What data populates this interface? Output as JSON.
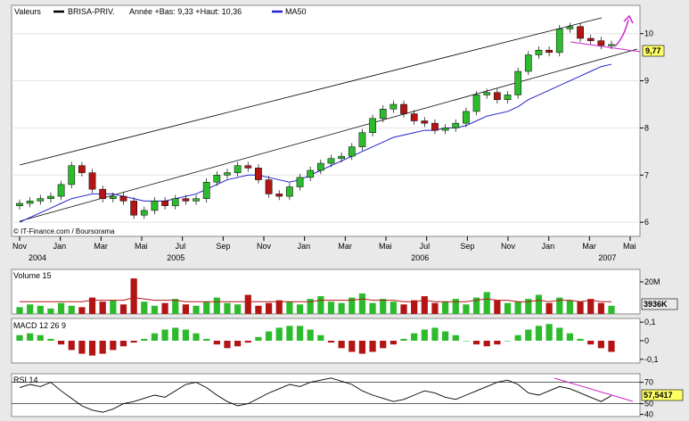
{
  "colors": {
    "up": "#2dbb2d",
    "down": "#b31515",
    "ma": "#2222cc",
    "trend": "#000000",
    "annotation": "#cc22cc",
    "lastbox": "#ffff66"
  },
  "legend": {
    "label": "Valeurs",
    "ticker": "BRISA-PRIV.",
    "range_text": "Année +Bas: 9,33 +Haut: 10,36",
    "ma_label": "MA50"
  },
  "watermark": "© IT-Finance.com / Boursorama",
  "x_axis": {
    "months": [
      {
        "label": "Nov",
        "t": 0
      },
      {
        "label": "Jan",
        "t": 2
      },
      {
        "label": "Mar",
        "t": 4
      },
      {
        "label": "Mai",
        "t": 6
      },
      {
        "label": "Jul",
        "t": 8
      },
      {
        "label": "Sep",
        "t": 10
      },
      {
        "label": "Nov",
        "t": 12
      },
      {
        "label": "Jan",
        "t": 14
      },
      {
        "label": "Mar",
        "t": 16
      },
      {
        "label": "Mai",
        "t": 18
      },
      {
        "label": "Jul",
        "t": 20
      },
      {
        "label": "Sep",
        "t": 22
      },
      {
        "label": "Nov",
        "t": 24
      },
      {
        "label": "Jan",
        "t": 26
      },
      {
        "label": "Mar",
        "t": 28
      },
      {
        "label": "Mai",
        "t": 30
      }
    ],
    "years": [
      {
        "label": "2004",
        "t": 0
      },
      {
        "label": "2005",
        "t": 6.8
      },
      {
        "label": "2006",
        "t": 18.8
      },
      {
        "label": "2007",
        "t": 28
      }
    ]
  },
  "chart_data": [
    {
      "type": "candlestick",
      "ylim": [
        5.7,
        10.6
      ],
      "yticks": [
        6,
        7,
        8,
        9,
        10
      ],
      "last_value": "9,77",
      "close": [
        6.4,
        6.45,
        6.5,
        6.55,
        6.8,
        7.2,
        7.05,
        6.7,
        6.5,
        6.55,
        6.45,
        6.15,
        6.25,
        6.45,
        6.35,
        6.5,
        6.45,
        6.5,
        6.85,
        7.0,
        7.05,
        7.2,
        7.15,
        6.9,
        6.6,
        6.55,
        6.75,
        6.95,
        7.1,
        7.25,
        7.35,
        7.4,
        7.6,
        7.9,
        8.2,
        8.4,
        8.5,
        8.3,
        8.15,
        8.1,
        7.95,
        8.0,
        8.1,
        8.35,
        8.7,
        8.75,
        8.6,
        8.7,
        9.2,
        9.55,
        9.65,
        9.6,
        10.1,
        10.15,
        9.9,
        9.85,
        9.75,
        9.77
      ],
      "ma50": [
        6.0,
        6.1,
        6.2,
        6.3,
        6.4,
        6.5,
        6.55,
        6.6,
        6.6,
        6.6,
        6.55,
        6.5,
        6.45,
        6.45,
        6.45,
        6.5,
        6.55,
        6.6,
        6.7,
        6.8,
        6.9,
        6.95,
        7.0,
        7.0,
        6.95,
        6.9,
        6.85,
        6.9,
        7.0,
        7.1,
        7.2,
        7.3,
        7.4,
        7.5,
        7.6,
        7.7,
        7.8,
        7.85,
        7.9,
        7.95,
        7.95,
        8.0,
        8.0,
        8.05,
        8.15,
        8.25,
        8.3,
        8.35,
        8.45,
        8.6,
        8.7,
        8.8,
        8.9,
        9.0,
        9.1,
        9.2,
        9.3,
        9.35
      ]
    },
    {
      "type": "bar",
      "title": "Volume 15",
      "yticks": [
        "20M"
      ],
      "last_value": "3936K",
      "values": [
        5,
        7,
        6,
        4,
        8,
        6,
        5,
        12,
        9,
        10,
        7,
        26,
        9,
        6,
        8,
        11,
        7,
        6,
        9,
        12,
        8,
        7,
        14,
        6,
        8,
        10,
        9,
        7,
        11,
        13,
        9,
        8,
        12,
        15,
        8,
        11,
        9,
        7,
        10,
        13,
        8,
        9,
        11,
        7,
        12,
        16,
        10,
        8,
        9,
        11,
        14,
        8,
        12,
        10,
        9,
        11,
        8,
        6
      ],
      "ma": [
        9,
        9,
        9,
        9,
        9,
        9,
        9,
        10,
        10,
        10,
        10,
        12,
        11,
        10,
        10,
        10,
        9,
        9,
        9,
        9,
        9,
        9,
        9,
        9,
        9,
        9,
        9,
        9,
        9,
        10,
        10,
        10,
        10,
        11,
        10,
        10,
        10,
        9,
        9,
        10,
        9,
        9,
        9,
        9,
        10,
        11,
        10,
        10,
        9,
        9,
        10,
        9,
        10,
        10,
        9,
        10,
        9,
        9
      ]
    },
    {
      "type": "bar",
      "title": "MACD 12 26 9",
      "ylim": [
        -0.12,
        0.12
      ],
      "yticks": [
        "0,1",
        "0",
        "-0,1"
      ],
      "values": [
        0.03,
        0.04,
        0.03,
        0.01,
        -0.02,
        -0.05,
        -0.07,
        -0.08,
        -0.07,
        -0.05,
        -0.03,
        -0.01,
        0.01,
        0.04,
        0.06,
        0.07,
        0.06,
        0.04,
        0.01,
        -0.02,
        -0.04,
        -0.03,
        -0.01,
        0.02,
        0.05,
        0.07,
        0.08,
        0.08,
        0.06,
        0.03,
        -0.01,
        -0.04,
        -0.06,
        -0.07,
        -0.06,
        -0.04,
        -0.02,
        0.01,
        0.04,
        0.06,
        0.07,
        0.05,
        0.03,
        0.0,
        -0.02,
        -0.03,
        -0.02,
        0.0,
        0.03,
        0.06,
        0.08,
        0.09,
        0.07,
        0.04,
        0.01,
        -0.02,
        -0.04,
        -0.06
      ]
    },
    {
      "type": "line",
      "title": "RSI 14",
      "ylim": [
        38,
        78
      ],
      "yticks": [
        "70",
        "50",
        "40"
      ],
      "last_value": "57,5417",
      "values": [
        65,
        68,
        66,
        70,
        62,
        55,
        48,
        44,
        42,
        45,
        50,
        52,
        55,
        58,
        56,
        62,
        68,
        70,
        65,
        58,
        52,
        48,
        50,
        55,
        60,
        64,
        68,
        66,
        70,
        72,
        74,
        71,
        68,
        62,
        58,
        55,
        52,
        54,
        58,
        62,
        60,
        56,
        54,
        58,
        62,
        66,
        70,
        72,
        68,
        60,
        58,
        62,
        66,
        64,
        60,
        56,
        52,
        57.5
      ]
    }
  ]
}
